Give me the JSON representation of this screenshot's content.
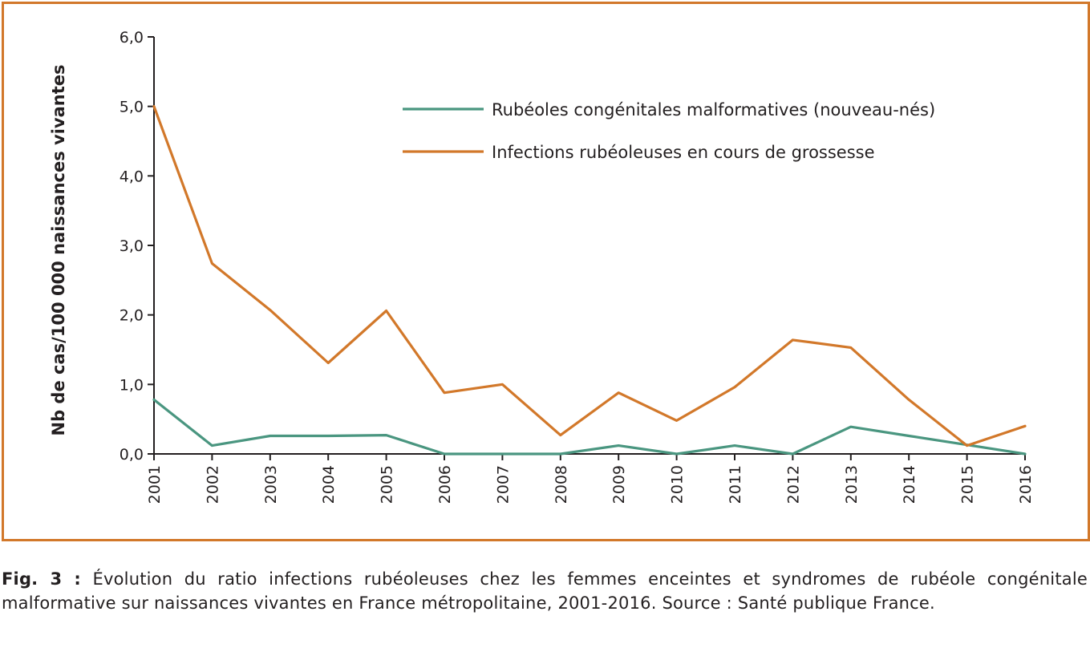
{
  "chart_data": {
    "type": "line",
    "title": "",
    "xlabel": "",
    "ylabel": "Nb de cas/100 000 naissances vivantes",
    "x": [
      "2001",
      "2002",
      "2003",
      "2004",
      "2005",
      "2006",
      "2007",
      "2008",
      "2009",
      "2010",
      "2011",
      "2012",
      "2013",
      "2014",
      "2015",
      "2016"
    ],
    "ylim": [
      0,
      6
    ],
    "yticks": [
      "0,0",
      "1,0",
      "2,0",
      "3,0",
      "4,0",
      "5,0",
      "6,0"
    ],
    "grid": false,
    "legend_position": "top-right",
    "series": [
      {
        "name": "Rubéoles congénitales malformatives (nouveau-nés)",
        "color": "#4a9680",
        "values": [
          0.78,
          0.12,
          0.26,
          0.26,
          0.27,
          0.0,
          0.0,
          0.0,
          0.12,
          0.0,
          0.12,
          0.0,
          0.39,
          0.26,
          0.13,
          0.0
        ]
      },
      {
        "name": "Infections rubéoleuses en cours de grossesse",
        "color": "#d2782a",
        "values": [
          5.0,
          2.74,
          2.07,
          1.31,
          2.06,
          0.88,
          1.0,
          0.27,
          0.88,
          0.48,
          0.96,
          1.64,
          1.53,
          0.78,
          0.12,
          0.4
        ]
      }
    ]
  },
  "caption": {
    "label": "Fig. 3 :",
    "text": " Évolution du ratio infections rubéoleuses chez les femmes enceintes et syndromes de rubéole congénitale malformative sur naissances vivantes en France métropolitaine, 2001-2016. Source : Santé publique France."
  }
}
